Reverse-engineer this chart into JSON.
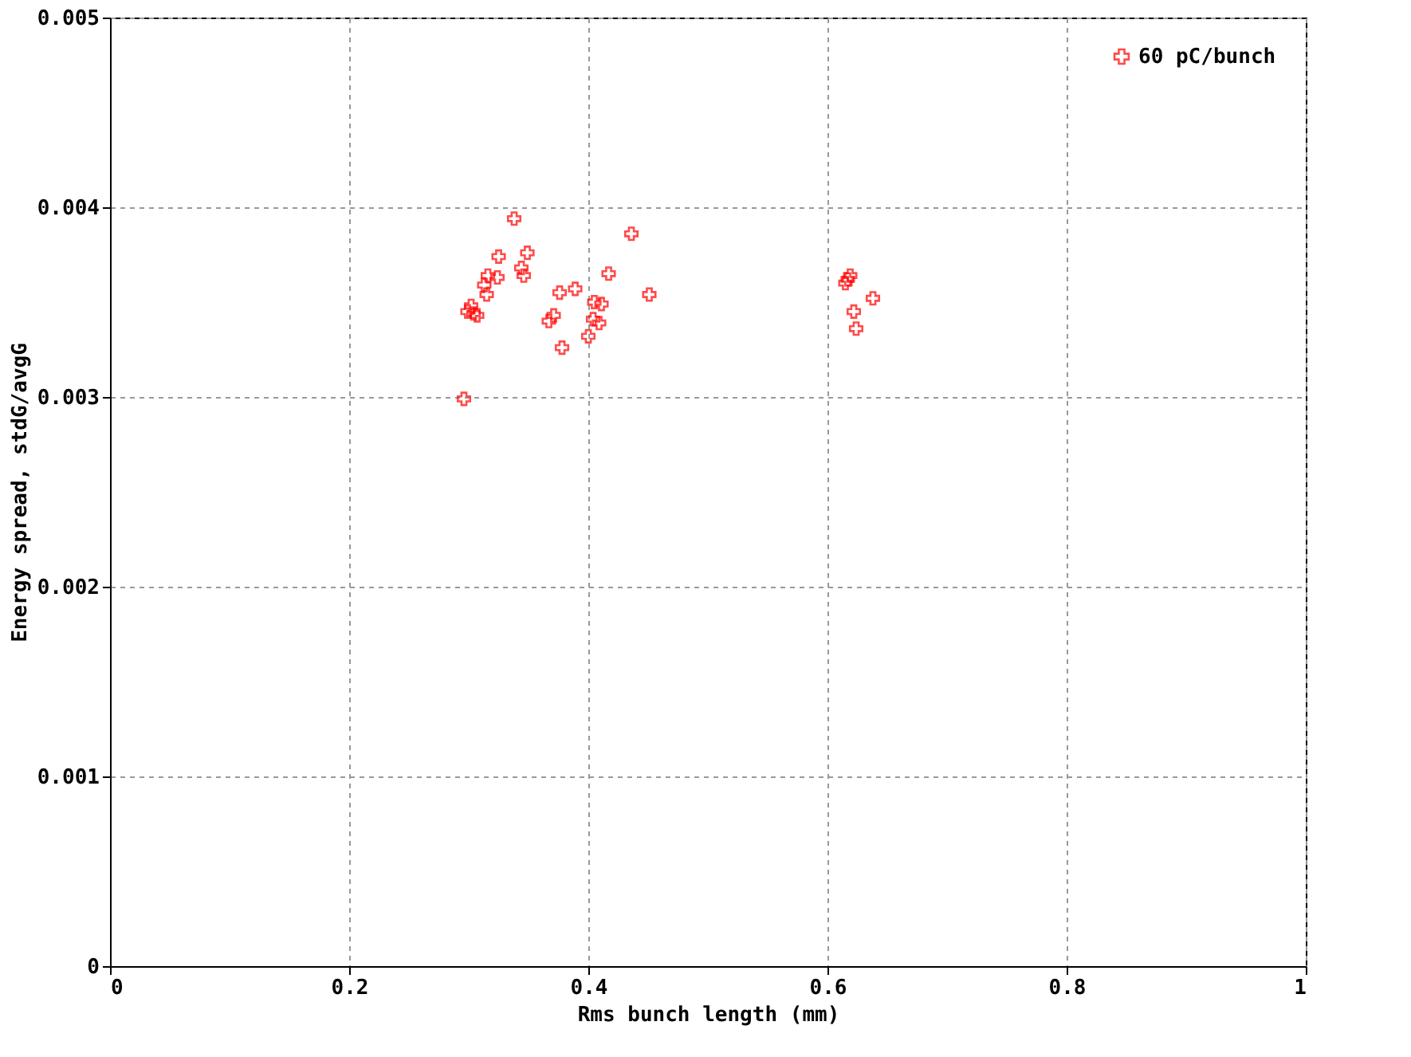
{
  "chart_data": {
    "type": "scatter",
    "xlabel": "Rms bunch length (mm)",
    "ylabel": "Energy spread, stdG/avgG",
    "xlim": [
      0,
      1
    ],
    "xticks": [
      0,
      0.2,
      0.4,
      0.6,
      0.8,
      1
    ],
    "ylim": [
      0,
      0.005
    ],
    "yticks": [
      0,
      0.001,
      0.002,
      0.003,
      0.004,
      0.005
    ],
    "grid": true,
    "legend": "top right",
    "marker": "cross",
    "series": [
      {
        "name": "60 pC/bunch",
        "color": "#ff0000",
        "x": [
          0.338,
          0.325,
          0.349,
          0.344,
          0.346,
          0.316,
          0.324,
          0.313,
          0.315,
          0.302,
          0.299,
          0.304,
          0.307,
          0.296,
          0.436,
          0.417,
          0.451,
          0.376,
          0.389,
          0.405,
          0.411,
          0.371,
          0.367,
          0.404,
          0.409,
          0.4,
          0.378,
          0.615,
          0.619,
          0.617,
          0.622,
          0.624,
          0.638
        ],
        "values": [
          0.00394,
          0.00374,
          0.00376,
          0.00368,
          0.00364,
          0.00364,
          0.00363,
          0.00359,
          0.00354,
          0.00348,
          0.00345,
          0.00344,
          0.00343,
          0.00299,
          0.00386,
          0.00365,
          0.00354,
          0.00355,
          0.00357,
          0.0035,
          0.00349,
          0.00343,
          0.0034,
          0.00341,
          0.00339,
          0.00332,
          0.00326,
          0.0036,
          0.00364,
          0.00362,
          0.00345,
          0.00336,
          0.00352
        ]
      }
    ]
  }
}
